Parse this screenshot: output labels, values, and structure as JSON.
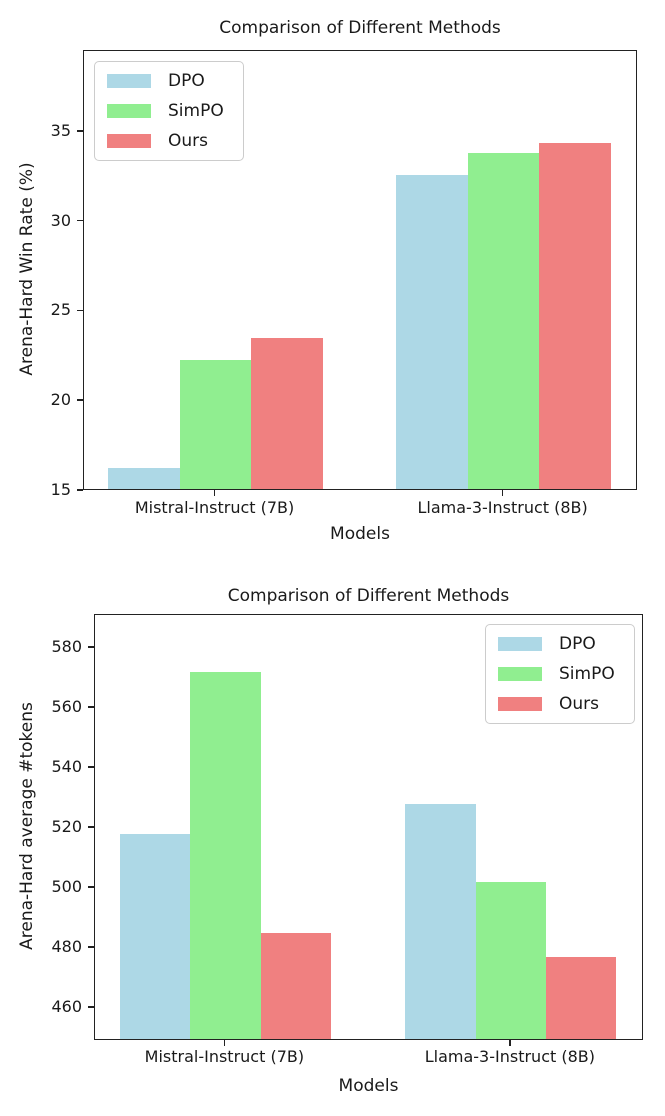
{
  "figure_background": "#ffffff",
  "axis_color": "#222222",
  "legend_border_color": "#cccccc",
  "chart_data": [
    {
      "type": "bar",
      "title": "Comparison of Different Methods",
      "xlabel": "Models",
      "ylabel": "Arena-Hard Win Rate (%)",
      "categories": [
        "Mistral-Instruct (7B)",
        "Llama-3-Instruct (8B)"
      ],
      "series": [
        {
          "name": "DPO",
          "color": "#ADD8E6",
          "values": [
            16.3,
            32.6
          ]
        },
        {
          "name": "SimPO",
          "color": "#90EE90",
          "values": [
            22.3,
            33.8
          ]
        },
        {
          "name": "Ours",
          "color": "#F08080",
          "values": [
            23.5,
            34.4
          ]
        }
      ],
      "yticks": [
        15,
        20,
        25,
        30,
        35
      ],
      "ylim": [
        15,
        39.5
      ],
      "legend_position": "top-left",
      "grid": false
    },
    {
      "type": "bar",
      "title": "Comparison of Different Methods",
      "xlabel": "Models",
      "ylabel": "Arena-Hard average #tokens",
      "categories": [
        "Mistral-Instruct (7B)",
        "Llama-3-Instruct (8B)"
      ],
      "series": [
        {
          "name": "DPO",
          "color": "#ADD8E6",
          "values": [
            518,
            528
          ]
        },
        {
          "name": "SimPO",
          "color": "#90EE90",
          "values": [
            572,
            502
          ]
        },
        {
          "name": "Ours",
          "color": "#F08080",
          "values": [
            485,
            477
          ]
        }
      ],
      "yticks": [
        460,
        480,
        500,
        520,
        540,
        560,
        580
      ],
      "ylim": [
        449,
        591
      ],
      "legend_position": "top-right",
      "grid": false
    }
  ]
}
